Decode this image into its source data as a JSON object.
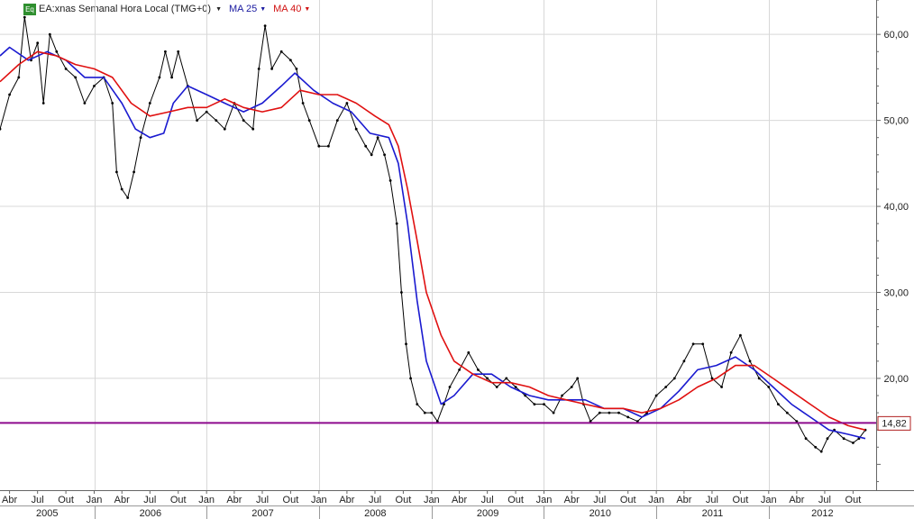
{
  "legend": {
    "symbol_badge": "Eq",
    "symbol_label": "EA:xnas Semanal Hora Local (TMG+0)",
    "ma_short_label": "MA 25",
    "ma_long_label": "MA 40"
  },
  "chart_data": {
    "type": "line",
    "title": "",
    "xlabel": "",
    "ylabel": "",
    "grid": true,
    "log_scale": false,
    "ylim": [
      7,
      64
    ],
    "y_ticks": [
      20,
      30,
      40,
      50,
      60
    ],
    "y_tick_labels": [
      "20,00",
      "30,00",
      "40,00",
      "50,00",
      "60,00"
    ],
    "xlim": [
      "2005-03-01",
      "2012-12-15"
    ],
    "month_ticks": [
      {
        "date": "2005-04-01",
        "label": "Abr"
      },
      {
        "date": "2005-07-01",
        "label": "Jul"
      },
      {
        "date": "2005-10-01",
        "label": "Out"
      },
      {
        "date": "2006-01-01",
        "label": "Jan"
      },
      {
        "date": "2006-04-01",
        "label": "Abr"
      },
      {
        "date": "2006-07-01",
        "label": "Jul"
      },
      {
        "date": "2006-10-01",
        "label": "Out"
      },
      {
        "date": "2007-01-01",
        "label": "Jan"
      },
      {
        "date": "2007-04-01",
        "label": "Abr"
      },
      {
        "date": "2007-07-01",
        "label": "Jul"
      },
      {
        "date": "2007-10-01",
        "label": "Out"
      },
      {
        "date": "2008-01-01",
        "label": "Jan"
      },
      {
        "date": "2008-04-01",
        "label": "Abr"
      },
      {
        "date": "2008-07-01",
        "label": "Jul"
      },
      {
        "date": "2008-10-01",
        "label": "Out"
      },
      {
        "date": "2009-01-01",
        "label": "Jan"
      },
      {
        "date": "2009-04-01",
        "label": "Abr"
      },
      {
        "date": "2009-07-01",
        "label": "Jul"
      },
      {
        "date": "2009-10-01",
        "label": "Out"
      },
      {
        "date": "2010-01-01",
        "label": "Jan"
      },
      {
        "date": "2010-04-01",
        "label": "Abr"
      },
      {
        "date": "2010-07-01",
        "label": "Jul"
      },
      {
        "date": "2010-10-01",
        "label": "Out"
      },
      {
        "date": "2011-01-01",
        "label": "Jan"
      },
      {
        "date": "2011-04-01",
        "label": "Abr"
      },
      {
        "date": "2011-07-01",
        "label": "Jul"
      },
      {
        "date": "2011-10-01",
        "label": "Out"
      },
      {
        "date": "2012-01-01",
        "label": "Jan"
      },
      {
        "date": "2012-04-01",
        "label": "Abr"
      },
      {
        "date": "2012-07-01",
        "label": "Jul"
      },
      {
        "date": "2012-10-01",
        "label": "Out"
      }
    ],
    "year_labels": [
      {
        "start": "2005-03-01",
        "end": "2006-01-01",
        "label": "2005"
      },
      {
        "start": "2006-01-01",
        "end": "2007-01-01",
        "label": "2006"
      },
      {
        "start": "2007-01-01",
        "end": "2008-01-01",
        "label": "2007"
      },
      {
        "start": "2008-01-01",
        "end": "2009-01-01",
        "label": "2008"
      },
      {
        "start": "2009-01-01",
        "end": "2010-01-01",
        "label": "2009"
      },
      {
        "start": "2010-01-01",
        "end": "2011-01-01",
        "label": "2010"
      },
      {
        "start": "2011-01-01",
        "end": "2012-01-01",
        "label": "2011"
      },
      {
        "start": "2012-01-01",
        "end": "2012-12-15",
        "label": "2012"
      }
    ],
    "horizontal_line": {
      "value": 14.82,
      "label": "14,82",
      "color": "#8e0a8e"
    },
    "series": [
      {
        "name": "EA:xnas",
        "role": "price",
        "color": "#000000",
        "points": [
          [
            "2005-03-01",
            49
          ],
          [
            "2005-04-01",
            53
          ],
          [
            "2005-05-01",
            55
          ],
          [
            "2005-05-20",
            62
          ],
          [
            "2005-06-10",
            57
          ],
          [
            "2005-07-01",
            59
          ],
          [
            "2005-07-20",
            52
          ],
          [
            "2005-08-10",
            60
          ],
          [
            "2005-09-01",
            58
          ],
          [
            "2005-10-01",
            56
          ],
          [
            "2005-11-01",
            55
          ],
          [
            "2005-12-01",
            52
          ],
          [
            "2006-01-01",
            54
          ],
          [
            "2006-02-01",
            55
          ],
          [
            "2006-03-01",
            52
          ],
          [
            "2006-03-15",
            44
          ],
          [
            "2006-04-01",
            42
          ],
          [
            "2006-04-20",
            41
          ],
          [
            "2006-05-10",
            44
          ],
          [
            "2006-06-01",
            48
          ],
          [
            "2006-07-01",
            52
          ],
          [
            "2006-08-01",
            55
          ],
          [
            "2006-08-20",
            58
          ],
          [
            "2006-09-10",
            55
          ],
          [
            "2006-10-01",
            58
          ],
          [
            "2006-11-01",
            54
          ],
          [
            "2006-12-01",
            50
          ],
          [
            "2007-01-01",
            51
          ],
          [
            "2007-02-01",
            50
          ],
          [
            "2007-03-01",
            49
          ],
          [
            "2007-04-01",
            52
          ],
          [
            "2007-05-01",
            50
          ],
          [
            "2007-06-01",
            49
          ],
          [
            "2007-06-20",
            56
          ],
          [
            "2007-07-10",
            61
          ],
          [
            "2007-08-01",
            56
          ],
          [
            "2007-09-01",
            58
          ],
          [
            "2007-10-01",
            57
          ],
          [
            "2007-10-20",
            56
          ],
          [
            "2007-11-10",
            52
          ],
          [
            "2007-12-01",
            50
          ],
          [
            "2008-01-01",
            47
          ],
          [
            "2008-02-01",
            47
          ],
          [
            "2008-03-01",
            50
          ],
          [
            "2008-04-01",
            52
          ],
          [
            "2008-05-01",
            49
          ],
          [
            "2008-06-01",
            47
          ],
          [
            "2008-06-20",
            46
          ],
          [
            "2008-07-10",
            48
          ],
          [
            "2008-08-01",
            46
          ],
          [
            "2008-08-20",
            43
          ],
          [
            "2008-09-10",
            38
          ],
          [
            "2008-09-25",
            30
          ],
          [
            "2008-10-10",
            24
          ],
          [
            "2008-10-25",
            20
          ],
          [
            "2008-11-15",
            17
          ],
          [
            "2008-12-10",
            16
          ],
          [
            "2009-01-01",
            16
          ],
          [
            "2009-01-20",
            15
          ],
          [
            "2009-02-10",
            17
          ],
          [
            "2009-03-01",
            19
          ],
          [
            "2009-04-01",
            21
          ],
          [
            "2009-05-01",
            23
          ],
          [
            "2009-06-01",
            21
          ],
          [
            "2009-07-01",
            20
          ],
          [
            "2009-08-01",
            19
          ],
          [
            "2009-09-01",
            20
          ],
          [
            "2009-10-01",
            19
          ],
          [
            "2009-11-01",
            18
          ],
          [
            "2009-12-01",
            17
          ],
          [
            "2010-01-01",
            17
          ],
          [
            "2010-02-01",
            16
          ],
          [
            "2010-03-01",
            18
          ],
          [
            "2010-04-01",
            19
          ],
          [
            "2010-04-20",
            20
          ],
          [
            "2010-05-10",
            17
          ],
          [
            "2010-06-01",
            15
          ],
          [
            "2010-07-01",
            16
          ],
          [
            "2010-08-01",
            16
          ],
          [
            "2010-09-01",
            16
          ],
          [
            "2010-10-01",
            15.5
          ],
          [
            "2010-11-01",
            15
          ],
          [
            "2010-12-01",
            16
          ],
          [
            "2011-01-01",
            18
          ],
          [
            "2011-02-01",
            19
          ],
          [
            "2011-03-01",
            20
          ],
          [
            "2011-04-01",
            22
          ],
          [
            "2011-05-01",
            24
          ],
          [
            "2011-06-01",
            24
          ],
          [
            "2011-07-01",
            20
          ],
          [
            "2011-08-01",
            19
          ],
          [
            "2011-09-01",
            23
          ],
          [
            "2011-10-01",
            25
          ],
          [
            "2011-11-01",
            22
          ],
          [
            "2011-12-01",
            20
          ],
          [
            "2012-01-01",
            19
          ],
          [
            "2012-02-01",
            17
          ],
          [
            "2012-03-01",
            16
          ],
          [
            "2012-04-01",
            15
          ],
          [
            "2012-05-01",
            13
          ],
          [
            "2012-06-01",
            12
          ],
          [
            "2012-06-20",
            11.5
          ],
          [
            "2012-07-10",
            13
          ],
          [
            "2012-08-01",
            14
          ],
          [
            "2012-09-01",
            13
          ],
          [
            "2012-10-01",
            12.5
          ],
          [
            "2012-10-20",
            13
          ],
          [
            "2012-11-10",
            14
          ]
        ]
      },
      {
        "name": "MA 25",
        "role": "ma",
        "color": "#1a1ad0",
        "points": [
          [
            "2005-03-01",
            57.5
          ],
          [
            "2005-04-01",
            58.5
          ],
          [
            "2005-06-01",
            57
          ],
          [
            "2005-08-01",
            58
          ],
          [
            "2005-10-01",
            57
          ],
          [
            "2005-12-01",
            55
          ],
          [
            "2006-02-01",
            55
          ],
          [
            "2006-04-01",
            52
          ],
          [
            "2006-05-15",
            49
          ],
          [
            "2006-07-01",
            48
          ],
          [
            "2006-08-15",
            48.5
          ],
          [
            "2006-09-15",
            52
          ],
          [
            "2006-11-01",
            54
          ],
          [
            "2007-01-01",
            53
          ],
          [
            "2007-03-01",
            52
          ],
          [
            "2007-05-01",
            51
          ],
          [
            "2007-07-01",
            52
          ],
          [
            "2007-09-01",
            54
          ],
          [
            "2007-10-15",
            55.5
          ],
          [
            "2007-12-15",
            53.5
          ],
          [
            "2008-02-15",
            52
          ],
          [
            "2008-04-15",
            51
          ],
          [
            "2008-06-15",
            48.5
          ],
          [
            "2008-08-15",
            48
          ],
          [
            "2008-09-15",
            45
          ],
          [
            "2008-10-15",
            38
          ],
          [
            "2008-11-15",
            29
          ],
          [
            "2008-12-15",
            22
          ],
          [
            "2009-02-01",
            17
          ],
          [
            "2009-03-15",
            18
          ],
          [
            "2009-05-15",
            20.5
          ],
          [
            "2009-07-15",
            20.5
          ],
          [
            "2009-09-15",
            19
          ],
          [
            "2009-11-15",
            18
          ],
          [
            "2010-01-15",
            17.5
          ],
          [
            "2010-03-15",
            17.5
          ],
          [
            "2010-05-15",
            17.5
          ],
          [
            "2010-07-15",
            16.5
          ],
          [
            "2010-09-15",
            16.5
          ],
          [
            "2010-11-15",
            15.5
          ],
          [
            "2011-01-15",
            16.5
          ],
          [
            "2011-03-15",
            18.5
          ],
          [
            "2011-05-15",
            21
          ],
          [
            "2011-07-15",
            21.5
          ],
          [
            "2011-09-15",
            22.5
          ],
          [
            "2011-11-15",
            21
          ],
          [
            "2012-01-15",
            19
          ],
          [
            "2012-03-15",
            17
          ],
          [
            "2012-05-15",
            15.5
          ],
          [
            "2012-07-15",
            14
          ],
          [
            "2012-09-15",
            13.5
          ],
          [
            "2012-11-10",
            13
          ]
        ]
      },
      {
        "name": "MA 40",
        "role": "ma",
        "color": "#e01010",
        "points": [
          [
            "2005-03-01",
            54.5
          ],
          [
            "2005-05-01",
            56.5
          ],
          [
            "2005-07-01",
            58
          ],
          [
            "2005-09-01",
            57.5
          ],
          [
            "2005-11-01",
            56.5
          ],
          [
            "2006-01-01",
            56
          ],
          [
            "2006-03-01",
            55
          ],
          [
            "2006-05-01",
            52
          ],
          [
            "2006-07-01",
            50.5
          ],
          [
            "2006-09-01",
            51
          ],
          [
            "2006-11-01",
            51.5
          ],
          [
            "2007-01-01",
            51.5
          ],
          [
            "2007-03-01",
            52.5
          ],
          [
            "2007-05-01",
            51.5
          ],
          [
            "2007-07-01",
            51
          ],
          [
            "2007-09-01",
            51.5
          ],
          [
            "2007-11-01",
            53.5
          ],
          [
            "2008-01-01",
            53
          ],
          [
            "2008-03-01",
            53
          ],
          [
            "2008-05-01",
            52
          ],
          [
            "2008-07-01",
            50.5
          ],
          [
            "2008-08-15",
            49.5
          ],
          [
            "2008-09-15",
            47
          ],
          [
            "2008-10-15",
            42
          ],
          [
            "2008-11-15",
            36
          ],
          [
            "2008-12-15",
            30
          ],
          [
            "2009-02-01",
            25
          ],
          [
            "2009-03-15",
            22
          ],
          [
            "2009-05-15",
            20.5
          ],
          [
            "2009-07-15",
            19.5
          ],
          [
            "2009-09-15",
            19.5
          ],
          [
            "2009-11-15",
            19
          ],
          [
            "2010-01-15",
            18
          ],
          [
            "2010-03-15",
            17.5
          ],
          [
            "2010-05-15",
            17
          ],
          [
            "2010-07-15",
            16.5
          ],
          [
            "2010-09-15",
            16.5
          ],
          [
            "2010-11-15",
            16
          ],
          [
            "2011-01-15",
            16.5
          ],
          [
            "2011-03-15",
            17.5
          ],
          [
            "2011-05-15",
            19
          ],
          [
            "2011-07-15",
            20
          ],
          [
            "2011-09-15",
            21.5
          ],
          [
            "2011-11-15",
            21.5
          ],
          [
            "2012-01-15",
            20
          ],
          [
            "2012-03-15",
            18.5
          ],
          [
            "2012-05-15",
            17
          ],
          [
            "2012-07-15",
            15.5
          ],
          [
            "2012-09-15",
            14.5
          ],
          [
            "2012-11-10",
            14
          ]
        ]
      }
    ]
  }
}
